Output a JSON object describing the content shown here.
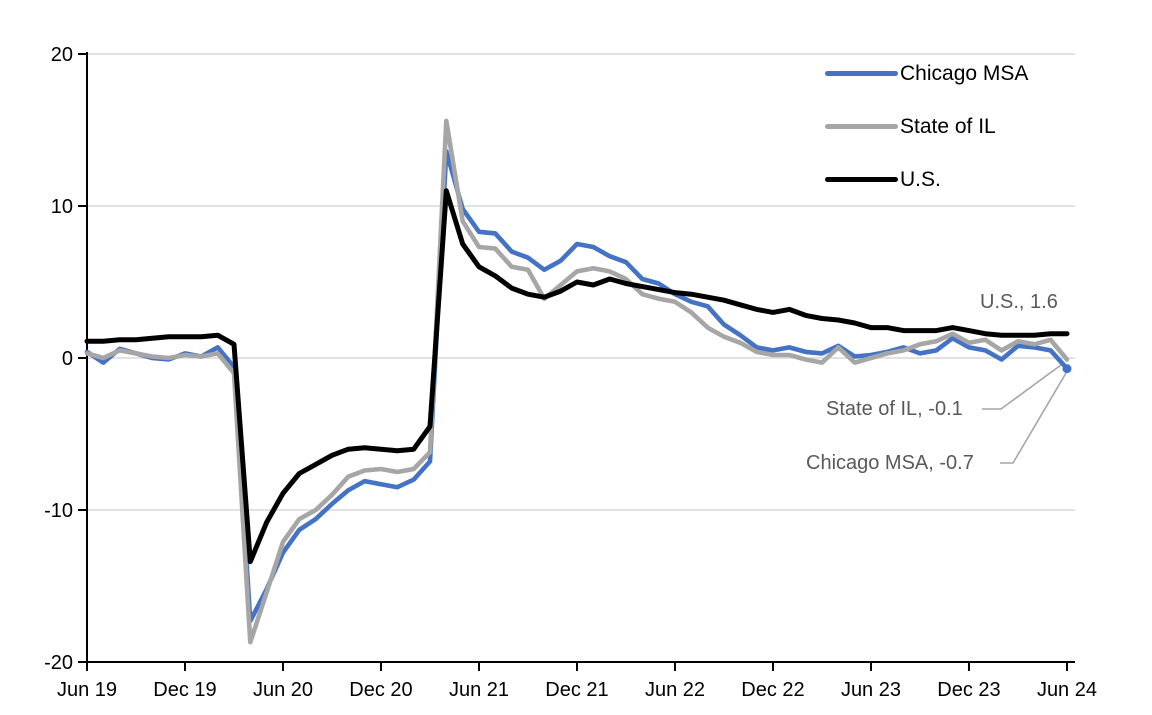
{
  "chart_data": {
    "type": "line",
    "title": "",
    "xlabel": "",
    "ylabel": "",
    "ylim": [
      -20,
      20
    ],
    "y_ticks": [
      20,
      10,
      0,
      -10,
      -20
    ],
    "y_tick_labels": [
      "20",
      "10",
      "0",
      "-10",
      "-20"
    ],
    "x_tick_labels": [
      "Jun 19",
      "Dec 19",
      "Jun 20",
      "Dec 20",
      "Jun 21",
      "Dec 21",
      "Jun 22",
      "Dec 22",
      "Jun 23",
      "Dec 23",
      "Jun 24"
    ],
    "grid": "horizontal-only",
    "legend_position": "top-right-inside",
    "x": [
      "Jun-19",
      "Jul-19",
      "Aug-19",
      "Sep-19",
      "Oct-19",
      "Nov-19",
      "Dec-19",
      "Jan-20",
      "Feb-20",
      "Mar-20",
      "Apr-20",
      "May-20",
      "Jun-20",
      "Jul-20",
      "Aug-20",
      "Sep-20",
      "Oct-20",
      "Nov-20",
      "Dec-20",
      "Jan-21",
      "Feb-21",
      "Mar-21",
      "Apr-21",
      "May-21",
      "Jun-21",
      "Jul-21",
      "Aug-21",
      "Sep-21",
      "Oct-21",
      "Nov-21",
      "Dec-21",
      "Jan-22",
      "Feb-22",
      "Mar-22",
      "Apr-22",
      "May-22",
      "Jun-22",
      "Jul-22",
      "Aug-22",
      "Sep-22",
      "Oct-22",
      "Nov-22",
      "Dec-22",
      "Jan-23",
      "Feb-23",
      "Mar-23",
      "Apr-23",
      "May-23",
      "Jun-23",
      "Jul-23",
      "Aug-23",
      "Sep-23",
      "Oct-23",
      "Nov-23",
      "Dec-23",
      "Jan-24",
      "Feb-24",
      "Mar-24",
      "Apr-24",
      "May-24",
      "Jun-24"
    ],
    "series": [
      {
        "name": "Chicago MSA",
        "color": "#4472C4",
        "stroke_width": 4.6,
        "end_marker": true,
        "values": [
          0.4,
          -0.3,
          0.6,
          0.3,
          0.0,
          -0.1,
          0.3,
          0.1,
          0.7,
          -0.6,
          -17.3,
          -15.2,
          -12.8,
          -11.3,
          -10.6,
          -9.6,
          -8.7,
          -8.1,
          -8.3,
          -8.5,
          -8.0,
          -6.8,
          13.6,
          9.8,
          8.3,
          8.2,
          7.0,
          6.6,
          5.8,
          6.4,
          7.5,
          7.3,
          6.7,
          6.3,
          5.2,
          4.9,
          4.2,
          3.7,
          3.4,
          2.2,
          1.5,
          0.7,
          0.5,
          0.7,
          0.4,
          0.3,
          0.8,
          0.1,
          0.2,
          0.4,
          0.7,
          0.3,
          0.5,
          1.3,
          0.7,
          0.5,
          -0.1,
          0.8,
          0.7,
          0.5,
          -0.7
        ]
      },
      {
        "name": "State of IL",
        "color": "#A6A6A6",
        "stroke_width": 4.6,
        "end_marker": false,
        "values": [
          0.3,
          0.0,
          0.5,
          0.3,
          0.1,
          0.0,
          0.2,
          0.1,
          0.3,
          -1.0,
          -18.7,
          -15.4,
          -12.1,
          -10.6,
          -10.0,
          -9.0,
          -7.8,
          -7.4,
          -7.3,
          -7.5,
          -7.3,
          -6.2,
          15.6,
          9.0,
          7.3,
          7.2,
          6.0,
          5.8,
          3.9,
          4.8,
          5.7,
          5.9,
          5.7,
          5.2,
          4.2,
          3.9,
          3.7,
          3.0,
          2.0,
          1.4,
          1.0,
          0.4,
          0.2,
          0.2,
          -0.1,
          -0.3,
          0.7,
          -0.3,
          0.0,
          0.3,
          0.5,
          0.9,
          1.1,
          1.6,
          1.0,
          1.2,
          0.5,
          1.1,
          0.9,
          1.2,
          -0.1
        ]
      },
      {
        "name": "U.S.",
        "color": "#000000",
        "stroke_width": 5,
        "end_marker": false,
        "values": [
          1.1,
          1.1,
          1.2,
          1.2,
          1.3,
          1.4,
          1.4,
          1.4,
          1.5,
          0.9,
          -13.4,
          -10.8,
          -8.9,
          -7.6,
          -7.0,
          -6.4,
          -6.0,
          -5.9,
          -6.0,
          -6.1,
          -6.0,
          -4.5,
          11.0,
          7.5,
          6.0,
          5.4,
          4.6,
          4.2,
          4.0,
          4.4,
          5.0,
          4.8,
          5.2,
          4.9,
          4.7,
          4.5,
          4.3,
          4.2,
          4.0,
          3.8,
          3.5,
          3.2,
          3.0,
          3.2,
          2.8,
          2.6,
          2.5,
          2.3,
          2.0,
          2.0,
          1.8,
          1.8,
          1.8,
          2.0,
          1.8,
          1.6,
          1.5,
          1.5,
          1.5,
          1.6,
          1.6
        ]
      }
    ],
    "annotations": [
      {
        "text": "U.S., 1.6",
        "series": "U.S.",
        "value": 1.6
      },
      {
        "text": "State of IL, -0.1",
        "series": "State of IL",
        "value": -0.1
      },
      {
        "text": "Chicago MSA, -0.7",
        "series": "Chicago MSA",
        "value": -0.7
      }
    ]
  },
  "legend": {
    "items": [
      {
        "label": "Chicago MSA",
        "color": "#4472C4"
      },
      {
        "label": "State of IL",
        "color": "#A6A6A6"
      },
      {
        "label": "U.S.",
        "color": "#000000"
      }
    ]
  },
  "annotations": {
    "us": "U.S., 1.6",
    "il": "State of IL, -0.1",
    "chicago": "Chicago MSA, -0.7"
  },
  "colors": {
    "axis": "#000000",
    "gridline": "#D9D9D9",
    "tick_label": "#000000",
    "annotation_text": "#595959",
    "leader_line": "#A6A6A6",
    "background": "#FFFFFF"
  }
}
